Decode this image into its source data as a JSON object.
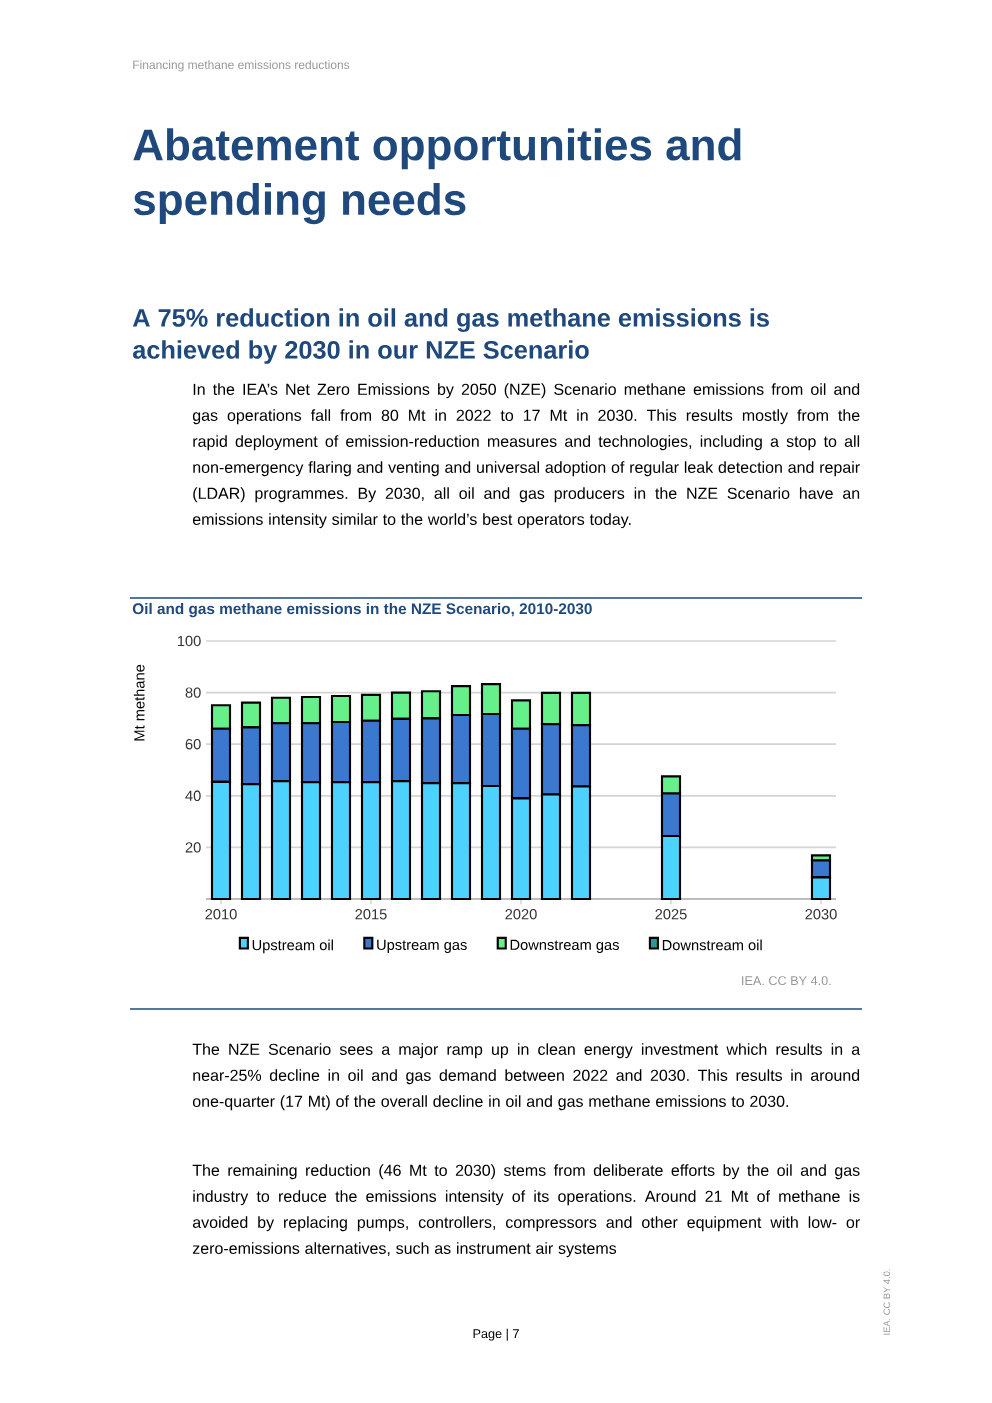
{
  "chart_data": {
    "type": "bar",
    "stacked": true,
    "title": "Oil and gas methane emissions in the NZE Scenario, 2010-2030",
    "ylabel": "Mt methane",
    "x": [
      2010,
      2011,
      2012,
      2013,
      2014,
      2015,
      2016,
      2017,
      2018,
      2019,
      2020,
      2021,
      2022,
      2025,
      2030
    ],
    "xlim": [
      2009.5,
      2030.5
    ],
    "xticks": [
      2010,
      2015,
      2020,
      2025,
      2030
    ],
    "ylim": [
      0,
      100
    ],
    "yticks": [
      20,
      40,
      60,
      80,
      100
    ],
    "grid": "y",
    "legend": "bottom",
    "series": [
      {
        "name": "Upstream oil",
        "color": "#4dd2ff",
        "values": [
          45.4,
          44.5,
          45.7,
          45.3,
          45.3,
          45.3,
          45.7,
          44.9,
          44.9,
          43.8,
          39.0,
          40.5,
          43.6,
          24.4,
          8.4
        ]
      },
      {
        "name": "Upstream gas",
        "color": "#3b78d0",
        "values": [
          20.6,
          22.0,
          22.4,
          22.8,
          23.3,
          23.8,
          24.1,
          25.1,
          26.4,
          27.9,
          27.0,
          27.3,
          23.8,
          16.5,
          6.5
        ]
      },
      {
        "name": "Downstream gas",
        "color": "#66f08c",
        "values": [
          9.1,
          9.6,
          9.9,
          10.2,
          10.1,
          10.0,
          10.2,
          10.5,
          11.2,
          11.6,
          11.0,
          12.1,
          12.5,
          6.6,
          2.0
        ]
      },
      {
        "name": "Downstream oil",
        "color": "#1f9e9a",
        "values": [
          0,
          0,
          0,
          0,
          0,
          0,
          0,
          0,
          0,
          0,
          0,
          0,
          0,
          0,
          0
        ]
      }
    ],
    "annotations": [
      "Financing methane emissions reductions",
      "Abatement opportunities and spending needs",
      "A 75% reduction in oil and gas methane emissions is achieved by 2030 in our NZE Scenario",
      "In the IEA’s Net Zero Emissions by 2050 (NZE) Scenario methane emissions from oil and gas operations fall from 80 Mt in 2022 to 17 Mt in 2030. This results mostly from the rapid deployment of emission-reduction measures and technologies, including a stop to all non-emergency flaring and venting and universal adoption of regular leak detection and repair (LDAR) programmes. By 2030, all oil and gas producers in the NZE Scenario have an emissions intensity similar to the world’s best operators today.",
      "IEA. CC BY 4.0.",
      "The NZE Scenario sees a major ramp up in clean energy investment which results in a near-25% decline in oil and gas demand between 2022 and 2030. This results in around one-quarter (17 Mt) of the overall decline in oil and gas methane emissions to 2030.",
      "The remaining reduction (46 Mt to 2030) stems from deliberate efforts by the oil and gas industry to reduce the emissions intensity of its operations. Around 21 Mt of methane is avoided by replacing pumps, controllers, compressors and other equipment with low- or zero-emissions alternatives, such as instrument air systems",
      "Page | 7",
      "IEA. CC BY 4.0."
    ]
  }
}
